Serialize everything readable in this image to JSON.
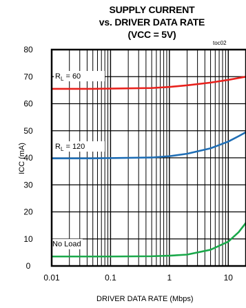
{
  "chart_data": {
    "type": "line",
    "title_lines": [
      "SUPPLY CURRENT",
      "vs. DRIVER DATA RATE",
      "(VCC = 5V)"
    ],
    "tag": "toc02",
    "xlabel": "DRIVER DATA RATE (Mbps)",
    "ylabel": "ICC (mA)",
    "x_scale": "log",
    "xlim": [
      0.01,
      20
    ],
    "ylim": [
      0,
      80
    ],
    "x_ticks": [
      0.01,
      0.1,
      1,
      10
    ],
    "x_tick_labels": [
      "0.01",
      "0.1",
      "1",
      "10"
    ],
    "y_ticks": [
      0,
      10,
      20,
      30,
      40,
      50,
      60,
      70,
      80
    ],
    "y_tick_labels": [
      "0",
      "10",
      "20",
      "30",
      "40",
      "50",
      "60",
      "70",
      "80"
    ],
    "grid": true,
    "series": [
      {
        "name_main": "R",
        "name_sub": "L",
        "name_rest": " = 60",
        "color": "#e8211c",
        "x": [
          0.01,
          0.05,
          0.1,
          0.5,
          1,
          2,
          5,
          10,
          15,
          20
        ],
        "y": [
          65.5,
          65.5,
          65.6,
          65.8,
          66.2,
          66.8,
          67.8,
          68.8,
          69.5,
          70
        ]
      },
      {
        "name_main": "R",
        "name_sub": "L",
        "name_rest": " = 120",
        "color": "#1f6eb5",
        "x": [
          0.01,
          0.05,
          0.1,
          0.5,
          1,
          2,
          5,
          10,
          15,
          20
        ],
        "y": [
          39.8,
          39.8,
          39.9,
          40.1,
          40.6,
          41.5,
          43.5,
          46,
          48,
          49.5
        ]
      },
      {
        "name_main": "No Load",
        "name_sub": "",
        "name_rest": "",
        "color": "#1aa84a",
        "x": [
          0.01,
          0.05,
          0.1,
          0.5,
          1,
          2,
          5,
          10,
          15,
          20
        ],
        "y": [
          3.5,
          3.5,
          3.5,
          3.6,
          3.8,
          4.2,
          6,
          9,
          12.5,
          16
        ]
      }
    ]
  }
}
